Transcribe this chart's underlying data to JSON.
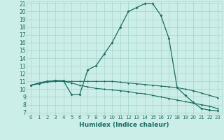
{
  "title": "",
  "xlabel": "Humidex (Indice chaleur)",
  "bg_color": "#cceee8",
  "grid_color": "#aad8d0",
  "line_color": "#1a6b60",
  "xlim": [
    -0.5,
    23.5
  ],
  "ylim": [
    6.7,
    21.3
  ],
  "xticks": [
    0,
    1,
    2,
    3,
    4,
    5,
    6,
    7,
    8,
    9,
    10,
    11,
    12,
    13,
    14,
    15,
    16,
    17,
    18,
    19,
    20,
    21,
    22,
    23
  ],
  "yticks": [
    7,
    8,
    9,
    10,
    11,
    12,
    13,
    14,
    15,
    16,
    17,
    18,
    19,
    20,
    21
  ],
  "line1_x": [
    0,
    1,
    2,
    3,
    4,
    5,
    6,
    7,
    8,
    9,
    10,
    11,
    12,
    13,
    14,
    15,
    16,
    17,
    18,
    19,
    20,
    21,
    22,
    23
  ],
  "line1_y": [
    10.5,
    10.8,
    11.0,
    11.1,
    11.1,
    9.3,
    9.3,
    12.5,
    13.0,
    14.5,
    16.0,
    18.0,
    20.0,
    20.5,
    21.0,
    21.0,
    19.5,
    16.5,
    10.2,
    9.2,
    8.3,
    7.5,
    7.3,
    7.2
  ],
  "line2_x": [
    0,
    1,
    2,
    3,
    4,
    5,
    6,
    7,
    8,
    9,
    10,
    11,
    12,
    13,
    14,
    15,
    16,
    17,
    18,
    19,
    20,
    21,
    22,
    23
  ],
  "line2_y": [
    10.5,
    10.8,
    11.0,
    11.1,
    11.0,
    11.0,
    11.0,
    11.0,
    11.0,
    11.0,
    11.0,
    10.9,
    10.8,
    10.7,
    10.6,
    10.5,
    10.4,
    10.3,
    10.2,
    10.0,
    9.8,
    9.5,
    9.2,
    8.9
  ],
  "line3_x": [
    0,
    1,
    2,
    3,
    4,
    5,
    6,
    7,
    8,
    9,
    10,
    11,
    12,
    13,
    14,
    15,
    16,
    17,
    18,
    19,
    20,
    21,
    22,
    23
  ],
  "line3_y": [
    10.5,
    10.7,
    10.9,
    11.0,
    11.0,
    10.8,
    10.5,
    10.3,
    10.1,
    10.0,
    9.9,
    9.8,
    9.7,
    9.5,
    9.4,
    9.2,
    9.0,
    8.8,
    8.6,
    8.4,
    8.2,
    8.0,
    7.8,
    7.5
  ]
}
